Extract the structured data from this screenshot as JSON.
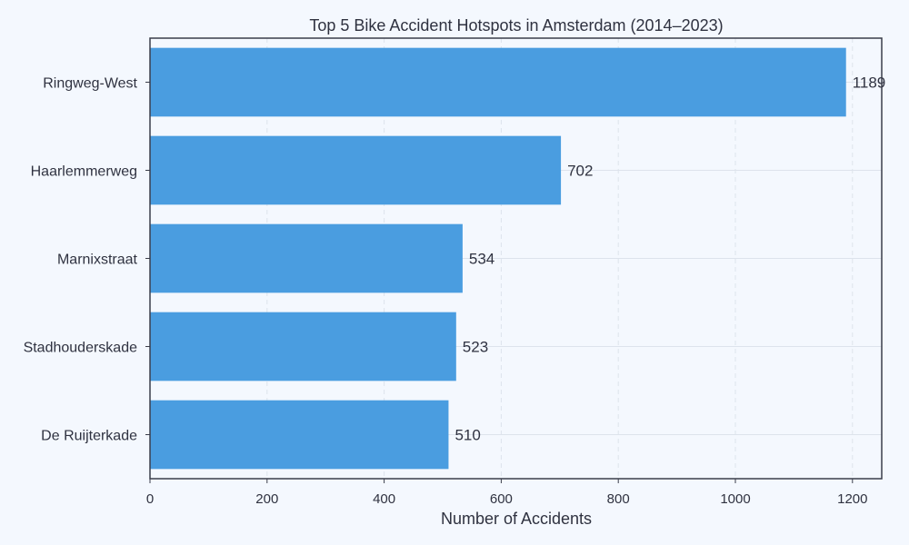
{
  "chart_data": {
    "type": "bar",
    "orientation": "horizontal",
    "title": "Top 5 Bike Accident Hotspots in Amsterdam (2014–2023)",
    "xlabel": "Number of Accidents",
    "ylabel": "",
    "categories": [
      "Ringweg-West",
      "Haarlemmerweg",
      "Marnixstraat",
      "Stadhouderskade",
      "De Ruijterkade"
    ],
    "values": [
      1189,
      702,
      534,
      523,
      510
    ],
    "xlim": [
      0,
      1250
    ],
    "xticks": [
      0,
      200,
      400,
      600,
      800,
      1000,
      1200
    ],
    "grid": true,
    "colors": {
      "bar": "#4a9de0",
      "background": "#f4f8fe",
      "axes": "#3a3d4a",
      "grid": "#dde3ec",
      "text": "#2f3240"
    }
  }
}
